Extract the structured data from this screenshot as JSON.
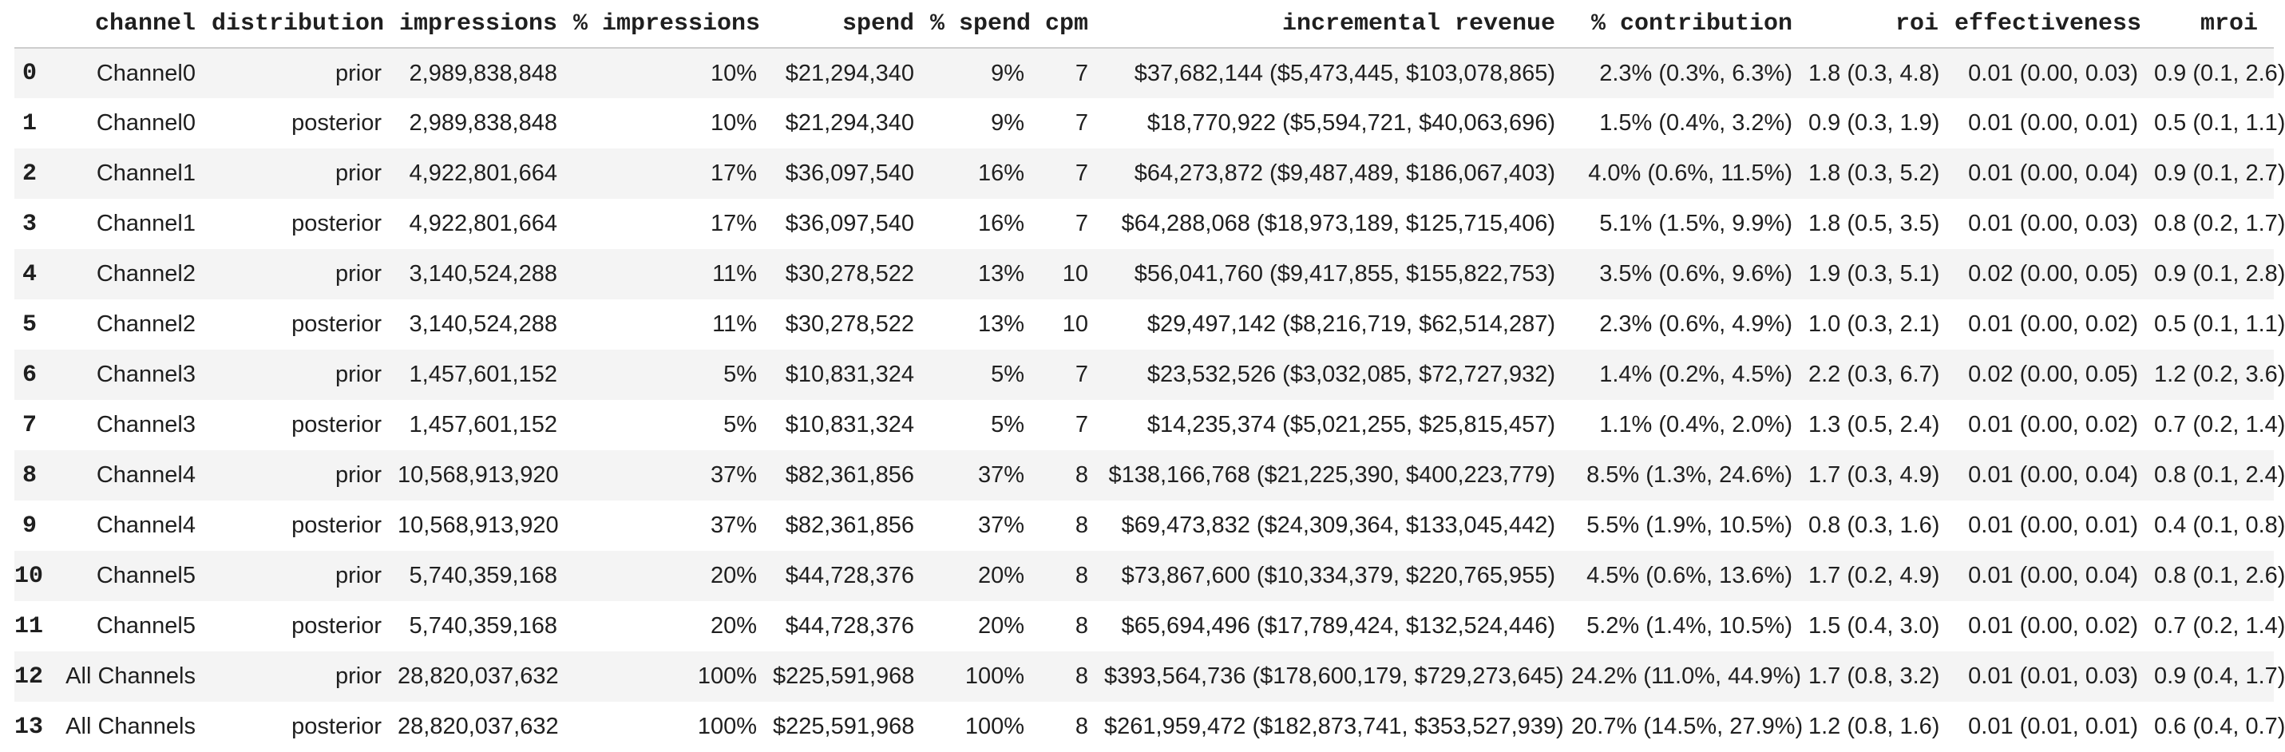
{
  "colors": {
    "stripe_row": "#f4f4f4",
    "background": "#ffffff",
    "text": "#1f1f1f",
    "header_rule": "#cdcdcd"
  },
  "chart_data": {
    "type": "table",
    "index_header": "",
    "columns": [
      "channel",
      "distribution",
      "impressions",
      "% impressions",
      "spend",
      "% spend",
      "cpm",
      "incremental revenue",
      "% contribution",
      "roi",
      "effectiveness",
      "mroi"
    ],
    "index": [
      "0",
      "1",
      "2",
      "3",
      "4",
      "5",
      "6",
      "7",
      "8",
      "9",
      "10",
      "11",
      "12",
      "13"
    ],
    "rows": [
      [
        "Channel0",
        "prior",
        "2,989,838,848",
        "10%",
        "$21,294,340",
        "9%",
        "7",
        "$37,682,144 ($5,473,445, $103,078,865)",
        "2.3% (0.3%, 6.3%)",
        "1.8 (0.3, 4.8)",
        "0.01 (0.00, 0.03)",
        "0.9 (0.1, 2.6)"
      ],
      [
        "Channel0",
        "posterior",
        "2,989,838,848",
        "10%",
        "$21,294,340",
        "9%",
        "7",
        "$18,770,922 ($5,594,721, $40,063,696)",
        "1.5% (0.4%, 3.2%)",
        "0.9 (0.3, 1.9)",
        "0.01 (0.00, 0.01)",
        "0.5 (0.1, 1.1)"
      ],
      [
        "Channel1",
        "prior",
        "4,922,801,664",
        "17%",
        "$36,097,540",
        "16%",
        "7",
        "$64,273,872 ($9,487,489, $186,067,403)",
        "4.0% (0.6%, 11.5%)",
        "1.8 (0.3, 5.2)",
        "0.01 (0.00, 0.04)",
        "0.9 (0.1, 2.7)"
      ],
      [
        "Channel1",
        "posterior",
        "4,922,801,664",
        "17%",
        "$36,097,540",
        "16%",
        "7",
        "$64,288,068 ($18,973,189, $125,715,406)",
        "5.1% (1.5%, 9.9%)",
        "1.8 (0.5, 3.5)",
        "0.01 (0.00, 0.03)",
        "0.8 (0.2, 1.7)"
      ],
      [
        "Channel2",
        "prior",
        "3,140,524,288",
        "11%",
        "$30,278,522",
        "13%",
        "10",
        "$56,041,760 ($9,417,855, $155,822,753)",
        "3.5% (0.6%, 9.6%)",
        "1.9 (0.3, 5.1)",
        "0.02 (0.00, 0.05)",
        "0.9 (0.1, 2.8)"
      ],
      [
        "Channel2",
        "posterior",
        "3,140,524,288",
        "11%",
        "$30,278,522",
        "13%",
        "10",
        "$29,497,142 ($8,216,719, $62,514,287)",
        "2.3% (0.6%, 4.9%)",
        "1.0 (0.3, 2.1)",
        "0.01 (0.00, 0.02)",
        "0.5 (0.1, 1.1)"
      ],
      [
        "Channel3",
        "prior",
        "1,457,601,152",
        "5%",
        "$10,831,324",
        "5%",
        "7",
        "$23,532,526 ($3,032,085, $72,727,932)",
        "1.4% (0.2%, 4.5%)",
        "2.2 (0.3, 6.7)",
        "0.02 (0.00, 0.05)",
        "1.2 (0.2, 3.6)"
      ],
      [
        "Channel3",
        "posterior",
        "1,457,601,152",
        "5%",
        "$10,831,324",
        "5%",
        "7",
        "$14,235,374 ($5,021,255, $25,815,457)",
        "1.1% (0.4%, 2.0%)",
        "1.3 (0.5, 2.4)",
        "0.01 (0.00, 0.02)",
        "0.7 (0.2, 1.4)"
      ],
      [
        "Channel4",
        "prior",
        "10,568,913,920",
        "37%",
        "$82,361,856",
        "37%",
        "8",
        "$138,166,768 ($21,225,390, $400,223,779)",
        "8.5% (1.3%, 24.6%)",
        "1.7 (0.3, 4.9)",
        "0.01 (0.00, 0.04)",
        "0.8 (0.1, 2.4)"
      ],
      [
        "Channel4",
        "posterior",
        "10,568,913,920",
        "37%",
        "$82,361,856",
        "37%",
        "8",
        "$69,473,832 ($24,309,364, $133,045,442)",
        "5.5% (1.9%, 10.5%)",
        "0.8 (0.3, 1.6)",
        "0.01 (0.00, 0.01)",
        "0.4 (0.1, 0.8)"
      ],
      [
        "Channel5",
        "prior",
        "5,740,359,168",
        "20%",
        "$44,728,376",
        "20%",
        "8",
        "$73,867,600 ($10,334,379, $220,765,955)",
        "4.5% (0.6%, 13.6%)",
        "1.7 (0.2, 4.9)",
        "0.01 (0.00, 0.04)",
        "0.8 (0.1, 2.6)"
      ],
      [
        "Channel5",
        "posterior",
        "5,740,359,168",
        "20%",
        "$44,728,376",
        "20%",
        "8",
        "$65,694,496 ($17,789,424, $132,524,446)",
        "5.2% (1.4%, 10.5%)",
        "1.5 (0.4, 3.0)",
        "0.01 (0.00, 0.02)",
        "0.7 (0.2, 1.4)"
      ],
      [
        "All Channels",
        "prior",
        "28,820,037,632",
        "100%",
        "$225,591,968",
        "100%",
        "8",
        "$393,564,736 ($178,600,179, $729,273,645)",
        "24.2% (11.0%, 44.9%)",
        "1.7 (0.8, 3.2)",
        "0.01 (0.01, 0.03)",
        "0.9 (0.4, 1.7)"
      ],
      [
        "All Channels",
        "posterior",
        "28,820,037,632",
        "100%",
        "$225,591,968",
        "100%",
        "8",
        "$261,959,472 ($182,873,741, $353,527,939)",
        "20.7% (14.5%, 27.9%)",
        "1.2 (0.8, 1.6)",
        "0.01 (0.01, 0.01)",
        "0.6 (0.4, 0.7)"
      ]
    ]
  }
}
